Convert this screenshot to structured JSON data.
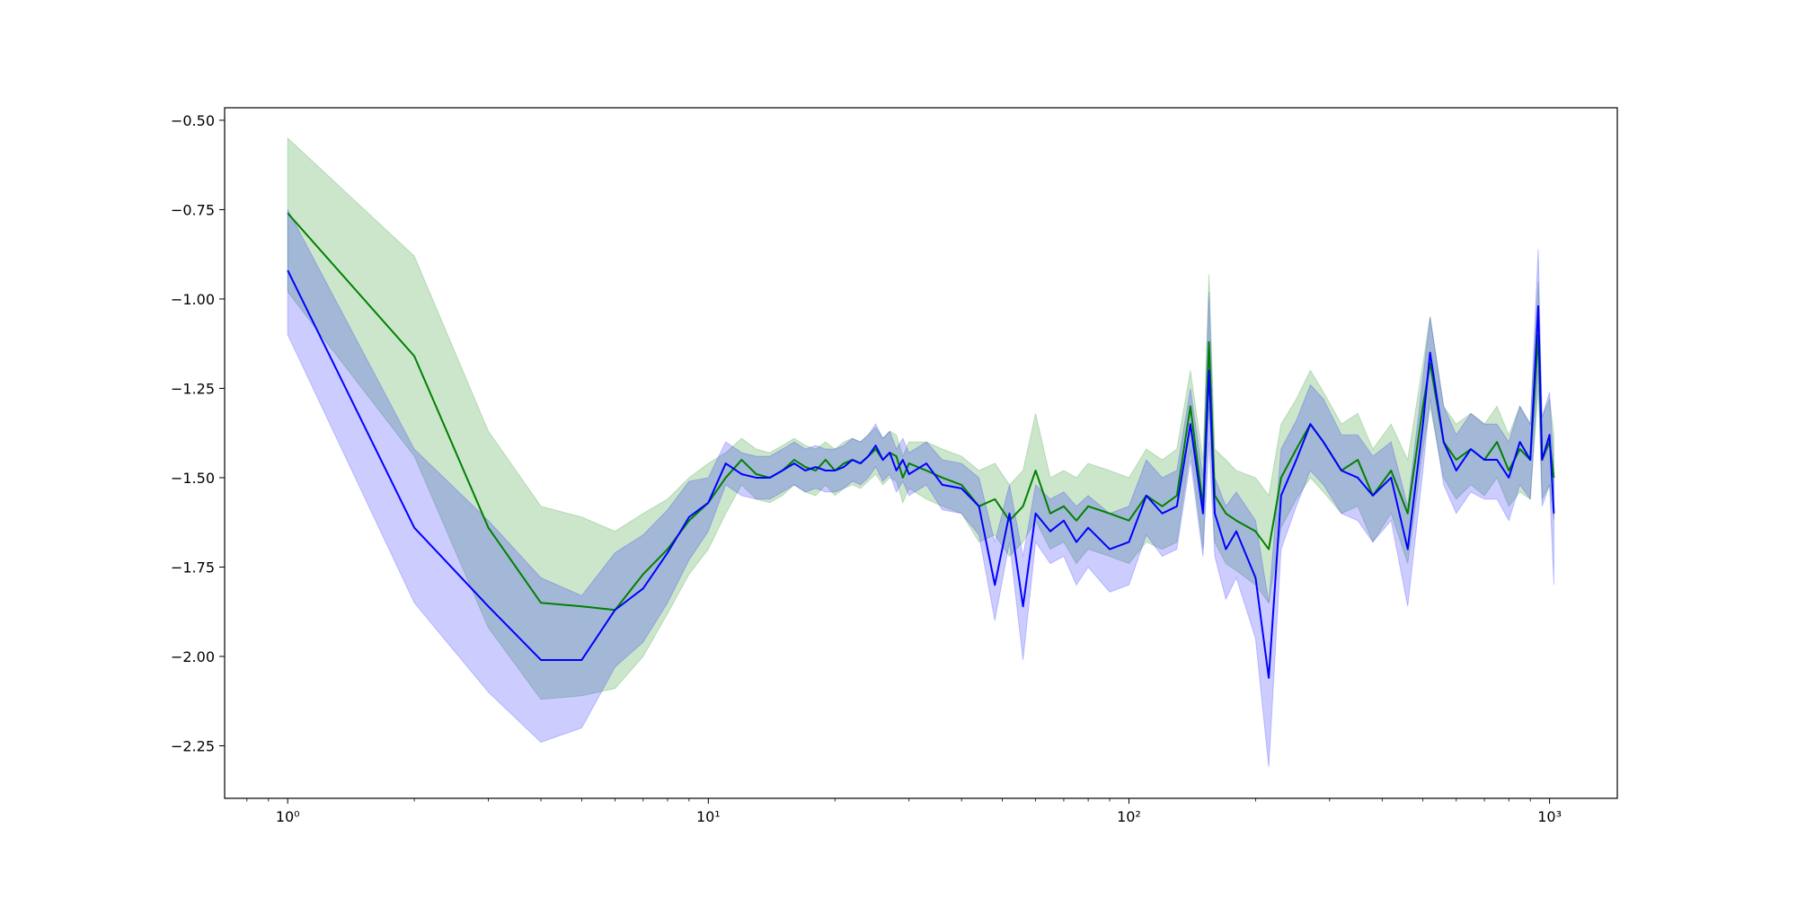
{
  "chart_data": {
    "type": "line",
    "xscale": "log",
    "grid": false,
    "xlim": [
      0.708,
      1449
    ],
    "ylim": [
      -2.397,
      -0.465
    ],
    "xticks": [
      {
        "value": 1,
        "label": "10⁰"
      },
      {
        "value": 10,
        "label": "10¹"
      },
      {
        "value": 100,
        "label": "10²"
      },
      {
        "value": 1000,
        "label": "10³"
      }
    ],
    "xminorticks": [
      0.8,
      0.9,
      2,
      3,
      4,
      5,
      6,
      7,
      8,
      9,
      20,
      30,
      40,
      50,
      60,
      70,
      80,
      90,
      200,
      300,
      400,
      500,
      600,
      700,
      800,
      900
    ],
    "yticks": [
      {
        "value": -2.25,
        "label": "−2.25"
      },
      {
        "value": -2.0,
        "label": "−2.00"
      },
      {
        "value": -1.75,
        "label": "−1.75"
      },
      {
        "value": -1.5,
        "label": "−1.50"
      },
      {
        "value": -1.25,
        "label": "−1.25"
      },
      {
        "value": -1.0,
        "label": "−1.00"
      },
      {
        "value": -0.75,
        "label": "−0.75"
      },
      {
        "value": -0.5,
        "label": "−0.50"
      }
    ],
    "x": [
      1,
      2,
      3,
      4,
      5,
      6,
      7,
      8,
      9,
      10,
      11,
      12,
      13,
      14,
      15,
      16,
      17,
      18,
      19,
      20,
      21,
      22,
      23,
      24,
      25,
      26,
      27,
      28,
      29,
      30,
      33,
      36,
      40,
      44,
      48,
      52,
      56,
      60,
      65,
      70,
      75,
      80,
      90,
      100,
      110,
      120,
      130,
      140,
      150,
      155,
      160,
      170,
      180,
      200,
      215,
      230,
      250,
      270,
      290,
      320,
      350,
      380,
      420,
      460,
      500,
      520,
      560,
      600,
      650,
      700,
      750,
      800,
      850,
      900,
      940,
      960,
      1000,
      1024
    ],
    "series": [
      {
        "color": "#008000",
        "band_alpha": 0.2,
        "values": [
          -0.76,
          -1.16,
          -1.64,
          -1.85,
          -1.86,
          -1.87,
          -1.77,
          -1.7,
          -1.62,
          -1.57,
          -1.5,
          -1.45,
          -1.49,
          -1.5,
          -1.48,
          -1.45,
          -1.47,
          -1.48,
          -1.45,
          -1.48,
          -1.46,
          -1.45,
          -1.46,
          -1.44,
          -1.42,
          -1.45,
          -1.43,
          -1.44,
          -1.5,
          -1.46,
          -1.48,
          -1.5,
          -1.52,
          -1.58,
          -1.56,
          -1.62,
          -1.58,
          -1.48,
          -1.6,
          -1.58,
          -1.62,
          -1.58,
          -1.6,
          -1.62,
          -1.55,
          -1.58,
          -1.55,
          -1.3,
          -1.58,
          -1.12,
          -1.55,
          -1.6,
          -1.62,
          -1.65,
          -1.7,
          -1.5,
          -1.42,
          -1.35,
          -1.4,
          -1.48,
          -1.45,
          -1.55,
          -1.48,
          -1.6,
          -1.3,
          -1.18,
          -1.4,
          -1.45,
          -1.42,
          -1.45,
          -1.4,
          -1.48,
          -1.42,
          -1.45,
          -1.1,
          -1.45,
          -1.4,
          -1.5
        ],
        "upper": [
          -0.55,
          -0.88,
          -1.37,
          -1.58,
          -1.61,
          -1.65,
          -1.6,
          -1.56,
          -1.5,
          -1.46,
          -1.43,
          -1.39,
          -1.42,
          -1.43,
          -1.41,
          -1.39,
          -1.41,
          -1.42,
          -1.4,
          -1.42,
          -1.4,
          -1.39,
          -1.4,
          -1.38,
          -1.36,
          -1.39,
          -1.37,
          -1.38,
          -1.44,
          -1.4,
          -1.4,
          -1.42,
          -1.44,
          -1.48,
          -1.46,
          -1.52,
          -1.48,
          -1.32,
          -1.5,
          -1.48,
          -1.5,
          -1.46,
          -1.48,
          -1.5,
          -1.42,
          -1.45,
          -1.42,
          -1.2,
          -1.45,
          -0.93,
          -1.42,
          -1.45,
          -1.48,
          -1.5,
          -1.55,
          -1.35,
          -1.28,
          -1.2,
          -1.26,
          -1.35,
          -1.32,
          -1.42,
          -1.35,
          -1.45,
          -1.18,
          -1.05,
          -1.3,
          -1.35,
          -1.32,
          -1.35,
          -1.3,
          -1.38,
          -1.3,
          -1.35,
          -0.95,
          -1.33,
          -1.28,
          -1.38
        ],
        "lower": [
          -0.98,
          -1.44,
          -1.92,
          -2.12,
          -2.11,
          -2.09,
          -2.0,
          -1.88,
          -1.77,
          -1.7,
          -1.6,
          -1.52,
          -1.56,
          -1.57,
          -1.55,
          -1.52,
          -1.54,
          -1.55,
          -1.52,
          -1.55,
          -1.53,
          -1.52,
          -1.53,
          -1.51,
          -1.49,
          -1.52,
          -1.5,
          -1.51,
          -1.57,
          -1.53,
          -1.56,
          -1.58,
          -1.6,
          -1.68,
          -1.66,
          -1.72,
          -1.68,
          -1.62,
          -1.7,
          -1.68,
          -1.74,
          -1.7,
          -1.72,
          -1.74,
          -1.68,
          -1.7,
          -1.68,
          -1.42,
          -1.7,
          -1.3,
          -1.68,
          -1.74,
          -1.76,
          -1.8,
          -1.85,
          -1.64,
          -1.56,
          -1.5,
          -1.54,
          -1.6,
          -1.58,
          -1.68,
          -1.6,
          -1.74,
          -1.42,
          -1.3,
          -1.5,
          -1.56,
          -1.52,
          -1.55,
          -1.5,
          -1.58,
          -1.54,
          -1.56,
          -1.25,
          -1.56,
          -1.52,
          -1.62
        ]
      },
      {
        "color": "#0000ff",
        "band_alpha": 0.2,
        "values": [
          -0.92,
          -1.64,
          -1.86,
          -2.01,
          -2.01,
          -1.87,
          -1.81,
          -1.71,
          -1.61,
          -1.57,
          -1.46,
          -1.49,
          -1.5,
          -1.5,
          -1.48,
          -1.46,
          -1.48,
          -1.47,
          -1.48,
          -1.48,
          -1.47,
          -1.45,
          -1.46,
          -1.44,
          -1.41,
          -1.45,
          -1.43,
          -1.48,
          -1.45,
          -1.49,
          -1.46,
          -1.52,
          -1.53,
          -1.58,
          -1.8,
          -1.6,
          -1.86,
          -1.6,
          -1.65,
          -1.62,
          -1.68,
          -1.64,
          -1.7,
          -1.68,
          -1.55,
          -1.6,
          -1.58,
          -1.35,
          -1.6,
          -1.2,
          -1.6,
          -1.7,
          -1.65,
          -1.78,
          -2.06,
          -1.55,
          -1.45,
          -1.35,
          -1.4,
          -1.48,
          -1.5,
          -1.55,
          -1.5,
          -1.7,
          -1.35,
          -1.15,
          -1.4,
          -1.48,
          -1.42,
          -1.45,
          -1.45,
          -1.5,
          -1.4,
          -1.45,
          -1.02,
          -1.45,
          -1.38,
          -1.6
        ],
        "upper": [
          -0.75,
          -1.42,
          -1.62,
          -1.78,
          -1.83,
          -1.71,
          -1.66,
          -1.59,
          -1.51,
          -1.5,
          -1.4,
          -1.43,
          -1.44,
          -1.44,
          -1.42,
          -1.4,
          -1.42,
          -1.41,
          -1.42,
          -1.42,
          -1.41,
          -1.39,
          -1.4,
          -1.38,
          -1.35,
          -1.39,
          -1.37,
          -1.42,
          -1.39,
          -1.43,
          -1.4,
          -1.45,
          -1.46,
          -1.5,
          -1.68,
          -1.52,
          -1.72,
          -1.52,
          -1.56,
          -1.54,
          -1.58,
          -1.55,
          -1.6,
          -1.58,
          -1.45,
          -1.5,
          -1.48,
          -1.25,
          -1.5,
          -0.98,
          -1.5,
          -1.58,
          -1.54,
          -1.62,
          -1.85,
          -1.42,
          -1.34,
          -1.24,
          -1.28,
          -1.38,
          -1.38,
          -1.44,
          -1.4,
          -1.58,
          -1.22,
          -1.05,
          -1.3,
          -1.38,
          -1.32,
          -1.35,
          -1.35,
          -1.4,
          -1.3,
          -1.35,
          -0.86,
          -1.33,
          -1.26,
          -1.48
        ],
        "lower": [
          -1.1,
          -1.85,
          -2.1,
          -2.24,
          -2.2,
          -2.03,
          -1.96,
          -1.85,
          -1.73,
          -1.65,
          -1.52,
          -1.55,
          -1.56,
          -1.56,
          -1.54,
          -1.52,
          -1.54,
          -1.53,
          -1.54,
          -1.54,
          -1.53,
          -1.51,
          -1.52,
          -1.5,
          -1.47,
          -1.51,
          -1.49,
          -1.54,
          -1.51,
          -1.55,
          -1.52,
          -1.59,
          -1.6,
          -1.66,
          -1.9,
          -1.68,
          -2.01,
          -1.68,
          -1.74,
          -1.72,
          -1.8,
          -1.75,
          -1.82,
          -1.8,
          -1.66,
          -1.72,
          -1.7,
          -1.45,
          -1.72,
          -1.4,
          -1.72,
          -1.84,
          -1.78,
          -1.95,
          -2.31,
          -1.7,
          -1.58,
          -1.48,
          -1.52,
          -1.6,
          -1.62,
          -1.68,
          -1.62,
          -1.86,
          -1.48,
          -1.28,
          -1.52,
          -1.6,
          -1.54,
          -1.56,
          -1.56,
          -1.62,
          -1.52,
          -1.56,
          -1.2,
          -1.58,
          -1.52,
          -1.8
        ]
      }
    ]
  }
}
